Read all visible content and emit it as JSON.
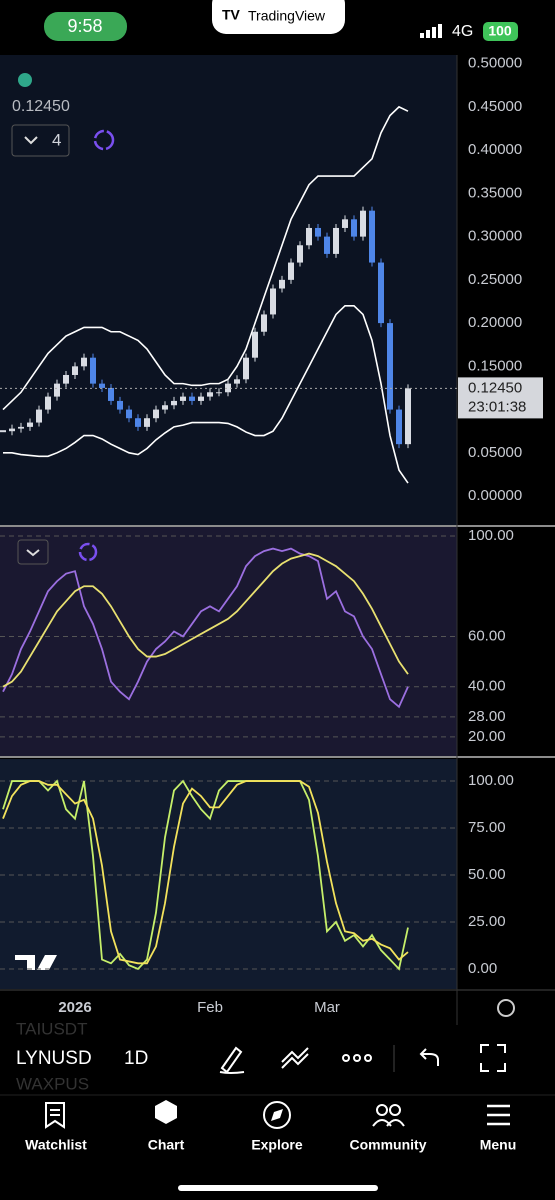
{
  "status_bar": {
    "time": "9:58",
    "app": "TradingView",
    "network": "4G",
    "battery": "100"
  },
  "chart_header": {
    "last_price": "0.12450",
    "indicator_count": "4"
  },
  "chart_data": [
    {
      "type": "candlestick",
      "values": [
        0.075,
        0.078,
        0.08,
        0.085,
        0.1,
        0.115,
        0.13,
        0.14,
        0.15,
        0.16,
        0.13,
        0.125,
        0.11,
        0.1,
        0.09,
        0.08,
        0.09,
        0.1,
        0.105,
        0.11,
        0.115,
        0.11,
        0.115,
        0.12,
        0.12,
        0.13,
        0.135,
        0.16,
        0.19,
        0.21,
        0.24,
        0.25,
        0.27,
        0.29,
        0.31,
        0.3,
        0.28,
        0.31,
        0.32,
        0.3,
        0.33,
        0.27,
        0.2,
        0.1,
        0.06,
        0.1245
      ],
      "up_color": "#d9dce3",
      "down_color": "#4f86e8",
      "bands": [
        {
          "color": "#ffffff",
          "values": [
            0.1,
            0.11,
            0.12,
            0.135,
            0.15,
            0.165,
            0.175,
            0.185,
            0.19,
            0.195,
            0.195,
            0.195,
            0.19,
            0.19,
            0.185,
            0.18,
            0.17,
            0.155,
            0.14,
            0.13,
            0.13,
            0.128,
            0.128,
            0.13,
            0.13,
            0.135,
            0.15,
            0.17,
            0.2,
            0.23,
            0.26,
            0.29,
            0.32,
            0.34,
            0.36,
            0.37,
            0.37,
            0.37,
            0.37,
            0.37,
            0.38,
            0.39,
            0.42,
            0.44,
            0.45,
            0.445
          ]
        },
        {
          "color": "#ffffff",
          "values": [
            0.05,
            0.05,
            0.048,
            0.047,
            0.046,
            0.046,
            0.05,
            0.055,
            0.062,
            0.07,
            0.07,
            0.066,
            0.06,
            0.055,
            0.05,
            0.048,
            0.055,
            0.065,
            0.073,
            0.08,
            0.082,
            0.085,
            0.085,
            0.085,
            0.085,
            0.084,
            0.08,
            0.074,
            0.07,
            0.07,
            0.075,
            0.09,
            0.11,
            0.13,
            0.15,
            0.17,
            0.19,
            0.21,
            0.22,
            0.22,
            0.21,
            0.18,
            0.13,
            0.07,
            0.03,
            0.015
          ]
        }
      ],
      "ylim": [
        -0.03,
        0.51
      ],
      "yticks": [
        {
          "value": 0.0,
          "label": "0.00000"
        },
        {
          "value": 0.05,
          "label": "0.05000"
        },
        {
          "value": 0.15,
          "label": "0.15000"
        },
        {
          "value": 0.2,
          "label": "0.20000"
        },
        {
          "value": 0.25,
          "label": "0.25000"
        },
        {
          "value": 0.3,
          "label": "0.30000"
        },
        {
          "value": 0.35,
          "label": "0.35000"
        },
        {
          "value": 0.4,
          "label": "0.40000"
        },
        {
          "value": 0.45,
          "label": "0.45000"
        },
        {
          "value": 0.5,
          "label": "0.50000"
        }
      ],
      "last_value": {
        "value": 0.1245,
        "label": "0.12450"
      },
      "countdown": "23:01:38",
      "grid": false
    },
    {
      "type": "line",
      "series": [
        {
          "color": "#9b6fe0",
          "values": [
            38,
            45,
            55,
            62,
            70,
            78,
            82,
            85,
            86,
            72,
            65,
            55,
            42,
            38,
            35,
            42,
            50,
            55,
            58,
            62,
            60,
            65,
            70,
            72,
            70,
            75,
            80,
            88,
            92,
            94,
            95,
            94,
            95,
            93,
            92,
            90,
            75,
            78,
            70,
            68,
            60,
            55,
            45,
            35,
            32,
            40
          ]
        },
        {
          "color": "#e8e070",
          "values": [
            40,
            42,
            46,
            52,
            58,
            64,
            70,
            74,
            78,
            80,
            80,
            77,
            72,
            66,
            60,
            55,
            52,
            52,
            53,
            55,
            57,
            59,
            61,
            63,
            65,
            67,
            70,
            74,
            78,
            82,
            86,
            89,
            91,
            92,
            93,
            92,
            90,
            88,
            85,
            82,
            77,
            71,
            64,
            57,
            50,
            45
          ]
        }
      ],
      "ylim": [
        12.8,
        102.4
      ],
      "yticks": [
        {
          "value": 20,
          "label": "20.00"
        },
        {
          "value": 28,
          "label": "28.00"
        },
        {
          "value": 40,
          "label": "40.00"
        },
        {
          "value": 60,
          "label": "60.00"
        },
        {
          "value": 100,
          "label": "100.00"
        }
      ],
      "grid": true
    },
    {
      "type": "line",
      "categories": [
        null,
        null,
        null,
        null,
        null,
        null,
        null,
        null,
        "2026",
        null,
        null,
        null,
        null,
        null,
        null,
        null,
        null,
        null,
        null,
        null,
        null,
        null,
        null,
        "Feb",
        null,
        null,
        null,
        null,
        null,
        null,
        null,
        null,
        null,
        null,
        null,
        null,
        "Mar",
        null,
        null,
        null,
        null,
        null,
        null,
        null,
        null,
        null
      ],
      "series": [
        {
          "color": "#c6ef6a",
          "values": [
            85,
            100,
            100,
            100,
            100,
            95,
            100,
            85,
            80,
            100,
            60,
            5,
            3,
            8,
            2,
            0,
            5,
            30,
            70,
            95,
            100,
            92,
            85,
            80,
            95,
            100,
            100,
            100,
            100,
            100,
            100,
            100,
            100,
            100,
            90,
            60,
            20,
            25,
            15,
            18,
            12,
            18,
            10,
            5,
            0,
            22
          ]
        },
        {
          "color": "#f2e25c",
          "values": [
            80,
            92,
            98,
            100,
            100,
            98,
            98,
            93,
            88,
            90,
            80,
            55,
            20,
            5,
            4,
            3,
            3,
            12,
            35,
            65,
            88,
            96,
            92,
            86,
            86,
            92,
            98,
            100,
            100,
            100,
            100,
            100,
            100,
            100,
            97,
            83,
            57,
            35,
            20,
            19,
            15,
            16,
            13,
            11,
            5,
            9
          ]
        }
      ],
      "ylim": [
        -11.2,
        111.2
      ],
      "yticks": [
        {
          "value": 0,
          "label": "0.00"
        },
        {
          "value": 25,
          "label": "25.00"
        },
        {
          "value": 50,
          "label": "50.00"
        },
        {
          "value": 75,
          "label": "75.00"
        },
        {
          "value": 100,
          "label": "100.00"
        }
      ],
      "grid": true
    }
  ],
  "toolbar": {
    "symbol": "LYNUSD",
    "interval": "1D",
    "symbols_behind": [
      "TAIUSDT",
      "WAXPUS"
    ]
  },
  "nav": [
    "Watchlist",
    "Chart",
    "Explore",
    "Community",
    "Menu"
  ]
}
